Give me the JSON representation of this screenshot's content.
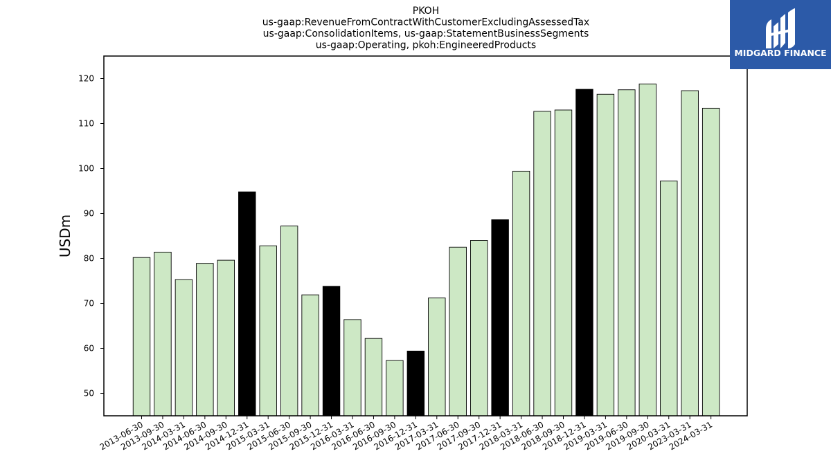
{
  "chart_data": {
    "type": "bar",
    "title_lines": [
      "PKOH",
      "us-gaap:RevenueFromContractWithCustomerExcludingAssessedTax",
      "us-gaap:ConsolidationItems, us-gaap:StatementBusinessSegments",
      "us-gaap:Operating, pkoh:EngineeredProducts"
    ],
    "xlabel": "",
    "ylabel": "USDm",
    "ylim": [
      45,
      125
    ],
    "yticks": [
      50,
      60,
      70,
      80,
      90,
      100,
      110,
      120
    ],
    "ytick_labels": [
      "50",
      "60",
      "70",
      "80",
      "90",
      "100",
      "110",
      "120"
    ],
    "categories": [
      "2013-06-30",
      "2013-09-30",
      "2014-03-31",
      "2014-06-30",
      "2014-09-30",
      "2014-12-31",
      "2015-03-31",
      "2015-06-30",
      "2015-09-30",
      "2015-12-31",
      "2016-03-31",
      "2016-06-30",
      "2016-09-30",
      "2016-12-31",
      "2017-03-31",
      "2017-06-30",
      "2017-09-30",
      "2017-12-31",
      "2018-03-31",
      "2018-06-30",
      "2018-09-30",
      "2018-12-31",
      "2019-03-31",
      "2019-06-30",
      "2019-09-30",
      "2020-03-31",
      "2023-03-31",
      "2024-03-31"
    ],
    "values": [
      80.2,
      81.4,
      75.3,
      78.9,
      79.6,
      94.8,
      82.8,
      87.2,
      71.9,
      73.8,
      66.4,
      62.2,
      57.3,
      59.4,
      71.2,
      82.5,
      84.0,
      88.6,
      99.4,
      112.7,
      113.0,
      117.6,
      116.5,
      117.5,
      118.8,
      97.2,
      117.3,
      113.4
    ],
    "highlighted": [
      false,
      false,
      false,
      false,
      false,
      true,
      false,
      false,
      false,
      true,
      false,
      false,
      false,
      true,
      false,
      false,
      false,
      true,
      false,
      false,
      false,
      true,
      false,
      false,
      false,
      false,
      false,
      false
    ],
    "colors": {
      "bar_fill": "#cde8c5",
      "bar_highlight": "#000000",
      "bar_edge": "#000000"
    },
    "grid": false,
    "legend": "none"
  },
  "logo": {
    "text": "MIDGARD FINANCE",
    "background": "#2c5aa8",
    "icon": "midgard-logo-icon"
  }
}
